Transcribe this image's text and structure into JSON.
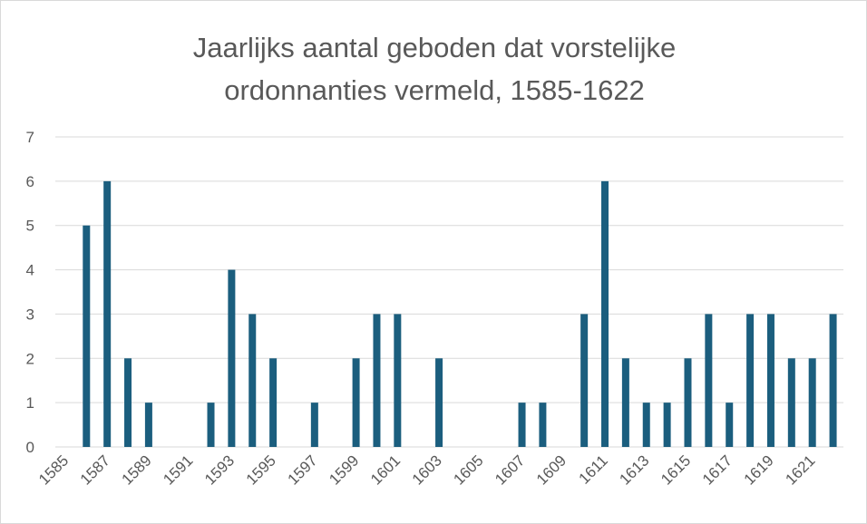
{
  "chart_data": {
    "type": "bar",
    "title": "Jaarlijks aantal geboden dat vorstelijke ordonnanties vermeld, 1585-1622",
    "categories": [
      "1585",
      null,
      "1587",
      null,
      "1589",
      null,
      "1591",
      null,
      "1593",
      null,
      "1595",
      null,
      "1597",
      null,
      "1599",
      null,
      "1601",
      null,
      "1603",
      null,
      "1605",
      null,
      "1607",
      null,
      "1609",
      null,
      "1611",
      null,
      "1613",
      null,
      "1615",
      null,
      "1617",
      null,
      "1619",
      null,
      "1621",
      null
    ],
    "values": [
      0,
      5,
      6,
      2,
      1,
      0,
      0,
      1,
      4,
      3,
      2,
      0,
      1,
      0,
      2,
      3,
      3,
      0,
      2,
      0,
      0,
      0,
      1,
      1,
      0,
      3,
      6,
      2,
      1,
      1,
      2,
      3,
      1,
      3,
      3,
      2,
      2,
      3
    ],
    "color": "#1b5e7e",
    "ylim": [
      0,
      7
    ],
    "yticks": [
      0,
      1,
      2,
      3,
      4,
      5,
      6,
      7
    ],
    "grid": true
  }
}
